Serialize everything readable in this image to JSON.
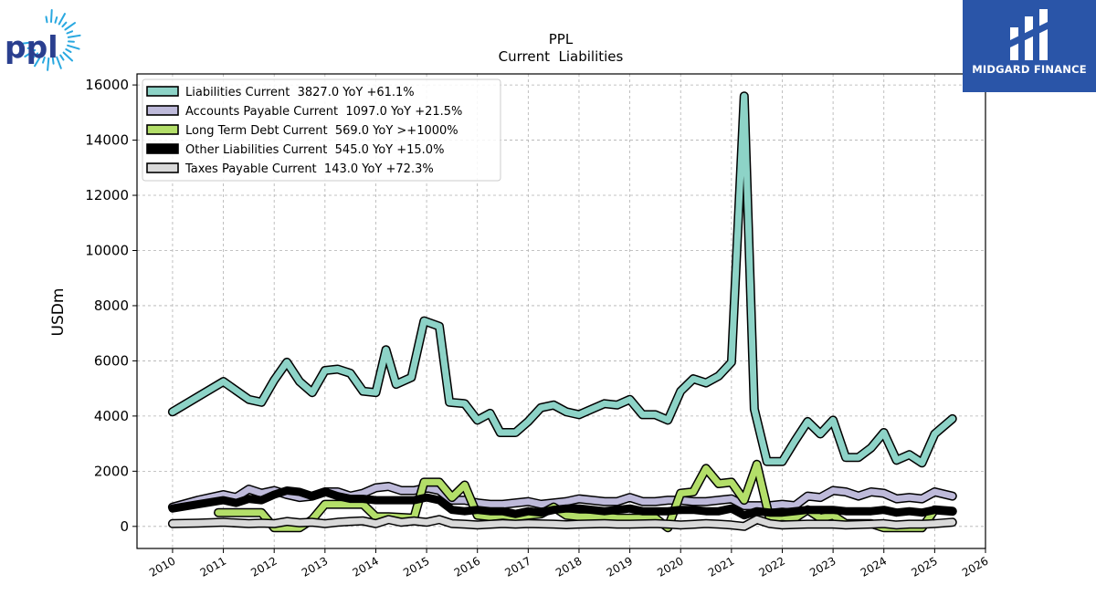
{
  "branding": {
    "company_logo_text": "ppl",
    "publisher": "MIDGARD FINANCE",
    "accent_color": "#2a55a8"
  },
  "chart_data": {
    "type": "line",
    "title": "PPL",
    "subtitle": "Current  Liabilities",
    "ylabel": "USDm",
    "xlabel": "",
    "xlim": [
      2009.3,
      2026.0
    ],
    "ylim": [
      -800,
      16400
    ],
    "x_ticks": [
      2010,
      2011,
      2012,
      2013,
      2014,
      2015,
      2016,
      2017,
      2018,
      2019,
      2020,
      2021,
      2022,
      2023,
      2024,
      2025,
      2026
    ],
    "y_ticks": [
      0,
      2000,
      4000,
      6000,
      8000,
      10000,
      12000,
      14000,
      16000
    ],
    "grid": true,
    "legend_position": "top-left",
    "series": [
      {
        "name": "Liabilities Current  3827.0 YoY +61.1%",
        "color": "#8dd3c7",
        "points": [
          [
            2010.0,
            4150
          ],
          [
            2011.0,
            5250
          ],
          [
            2011.5,
            4600
          ],
          [
            2011.75,
            4500
          ],
          [
            2012.0,
            5300
          ],
          [
            2012.25,
            5950
          ],
          [
            2012.5,
            5250
          ],
          [
            2012.75,
            4850
          ],
          [
            2013.0,
            5650
          ],
          [
            2013.25,
            5700
          ],
          [
            2013.5,
            5550
          ],
          [
            2013.75,
            4900
          ],
          [
            2014.0,
            4850
          ],
          [
            2014.2,
            6400
          ],
          [
            2014.4,
            5150
          ],
          [
            2014.7,
            5400
          ],
          [
            2014.95,
            7450
          ],
          [
            2015.25,
            7250
          ],
          [
            2015.45,
            4500
          ],
          [
            2015.75,
            4450
          ],
          [
            2016.0,
            3850
          ],
          [
            2016.25,
            4100
          ],
          [
            2016.45,
            3400
          ],
          [
            2016.75,
            3400
          ],
          [
            2017.0,
            3800
          ],
          [
            2017.25,
            4300
          ],
          [
            2017.5,
            4400
          ],
          [
            2017.75,
            4150
          ],
          [
            2018.0,
            4050
          ],
          [
            2018.25,
            4250
          ],
          [
            2018.5,
            4450
          ],
          [
            2018.75,
            4400
          ],
          [
            2019.0,
            4600
          ],
          [
            2019.25,
            4050
          ],
          [
            2019.5,
            4050
          ],
          [
            2019.75,
            3850
          ],
          [
            2020.0,
            4900
          ],
          [
            2020.25,
            5350
          ],
          [
            2020.5,
            5200
          ],
          [
            2020.75,
            5450
          ],
          [
            2021.0,
            5950
          ],
          [
            2021.25,
            15600
          ],
          [
            2021.45,
            4250
          ],
          [
            2021.7,
            2350
          ],
          [
            2022.0,
            2350
          ],
          [
            2022.25,
            3100
          ],
          [
            2022.5,
            3800
          ],
          [
            2022.75,
            3350
          ],
          [
            2023.0,
            3850
          ],
          [
            2023.25,
            2500
          ],
          [
            2023.5,
            2500
          ],
          [
            2023.75,
            2850
          ],
          [
            2024.0,
            3400
          ],
          [
            2024.25,
            2400
          ],
          [
            2024.5,
            2600
          ],
          [
            2024.75,
            2300
          ],
          [
            2025.0,
            3350
          ],
          [
            2025.35,
            3900
          ]
        ]
      },
      {
        "name": "Accounts Payable Current  1097.0 YoY +21.5%",
        "color": "#bebada",
        "points": [
          [
            2010.0,
            700
          ],
          [
            2010.5,
            950
          ],
          [
            2011.0,
            1150
          ],
          [
            2011.25,
            1050
          ],
          [
            2011.5,
            1350
          ],
          [
            2011.75,
            1200
          ],
          [
            2012.0,
            1300
          ],
          [
            2012.25,
            1150
          ],
          [
            2012.5,
            1050
          ],
          [
            2012.75,
            1100
          ],
          [
            2013.0,
            1250
          ],
          [
            2013.25,
            1250
          ],
          [
            2013.5,
            1100
          ],
          [
            2013.75,
            1200
          ],
          [
            2014.0,
            1400
          ],
          [
            2014.25,
            1450
          ],
          [
            2014.5,
            1300
          ],
          [
            2014.75,
            1300
          ],
          [
            2015.0,
            1400
          ],
          [
            2015.25,
            1300
          ],
          [
            2015.5,
            950
          ],
          [
            2015.75,
            950
          ],
          [
            2016.0,
            850
          ],
          [
            2016.25,
            800
          ],
          [
            2016.5,
            800
          ],
          [
            2016.75,
            850
          ],
          [
            2017.0,
            900
          ],
          [
            2017.25,
            800
          ],
          [
            2017.5,
            850
          ],
          [
            2017.75,
            900
          ],
          [
            2018.0,
            1000
          ],
          [
            2018.25,
            950
          ],
          [
            2018.5,
            900
          ],
          [
            2018.75,
            900
          ],
          [
            2019.0,
            1050
          ],
          [
            2019.25,
            900
          ],
          [
            2019.5,
            900
          ],
          [
            2019.75,
            950
          ],
          [
            2020.0,
            950
          ],
          [
            2020.25,
            900
          ],
          [
            2020.5,
            900
          ],
          [
            2020.75,
            950
          ],
          [
            2021.0,
            1000
          ],
          [
            2021.25,
            750
          ],
          [
            2021.5,
            750
          ],
          [
            2021.75,
            750
          ],
          [
            2022.0,
            800
          ],
          [
            2022.25,
            750
          ],
          [
            2022.5,
            1100
          ],
          [
            2022.75,
            1050
          ],
          [
            2023.0,
            1300
          ],
          [
            2023.25,
            1250
          ],
          [
            2023.5,
            1100
          ],
          [
            2023.75,
            1250
          ],
          [
            2024.0,
            1200
          ],
          [
            2024.25,
            1000
          ],
          [
            2024.5,
            1050
          ],
          [
            2024.75,
            1000
          ],
          [
            2025.0,
            1250
          ],
          [
            2025.35,
            1100
          ]
        ]
      },
      {
        "name": "Long Term Debt Current  569.0 YoY >+1000%",
        "color": "#b3de69",
        "points": [
          [
            2010.9,
            500
          ],
          [
            2011.75,
            500
          ],
          [
            2012.0,
            -50
          ],
          [
            2012.5,
            -50
          ],
          [
            2012.75,
            250
          ],
          [
            2013.0,
            800
          ],
          [
            2013.25,
            800
          ],
          [
            2013.75,
            800
          ],
          [
            2014.0,
            350
          ],
          [
            2014.25,
            350
          ],
          [
            2014.75,
            300
          ],
          [
            2014.95,
            1600
          ],
          [
            2015.25,
            1600
          ],
          [
            2015.5,
            1050
          ],
          [
            2015.75,
            1500
          ],
          [
            2016.0,
            400
          ],
          [
            2016.25,
            350
          ],
          [
            2016.5,
            400
          ],
          [
            2016.75,
            350
          ],
          [
            2017.0,
            400
          ],
          [
            2017.25,
            450
          ],
          [
            2017.5,
            700
          ],
          [
            2017.75,
            400
          ],
          [
            2018.0,
            350
          ],
          [
            2018.5,
            350
          ],
          [
            2018.75,
            300
          ],
          [
            2019.0,
            300
          ],
          [
            2019.25,
            300
          ],
          [
            2019.5,
            300
          ],
          [
            2019.75,
            -50
          ],
          [
            2020.0,
            1200
          ],
          [
            2020.25,
            1250
          ],
          [
            2020.5,
            2100
          ],
          [
            2020.75,
            1550
          ],
          [
            2021.0,
            1600
          ],
          [
            2021.25,
            950
          ],
          [
            2021.5,
            2250
          ],
          [
            2021.75,
            300
          ],
          [
            2022.0,
            350
          ],
          [
            2022.25,
            300
          ],
          [
            2022.5,
            600
          ],
          [
            2022.75,
            300
          ],
          [
            2023.0,
            400
          ],
          [
            2023.25,
            100
          ],
          [
            2023.5,
            100
          ],
          [
            2023.75,
            100
          ],
          [
            2024.0,
            -50
          ],
          [
            2024.25,
            -50
          ],
          [
            2024.5,
            -50
          ],
          [
            2024.75,
            -50
          ],
          [
            2025.0,
            600
          ],
          [
            2025.35,
            550
          ]
        ]
      },
      {
        "name": "Other Liabilities Current  545.0 YoY +15.0%",
        "color": "#000000",
        "points": [
          [
            2010.0,
            650
          ],
          [
            2010.5,
            800
          ],
          [
            2011.0,
            950
          ],
          [
            2011.25,
            850
          ],
          [
            2011.5,
            1000
          ],
          [
            2011.75,
            950
          ],
          [
            2012.0,
            1150
          ],
          [
            2012.25,
            1300
          ],
          [
            2012.5,
            1250
          ],
          [
            2012.75,
            1100
          ],
          [
            2013.0,
            1250
          ],
          [
            2013.25,
            1100
          ],
          [
            2013.5,
            1000
          ],
          [
            2013.75,
            1000
          ],
          [
            2014.0,
            950
          ],
          [
            2014.25,
            950
          ],
          [
            2014.5,
            950
          ],
          [
            2014.75,
            950
          ],
          [
            2015.0,
            1050
          ],
          [
            2015.25,
            950
          ],
          [
            2015.5,
            600
          ],
          [
            2015.75,
            550
          ],
          [
            2016.0,
            600
          ],
          [
            2016.25,
            550
          ],
          [
            2016.5,
            550
          ],
          [
            2016.75,
            450
          ],
          [
            2017.0,
            550
          ],
          [
            2017.25,
            500
          ],
          [
            2017.5,
            600
          ],
          [
            2017.75,
            650
          ],
          [
            2018.0,
            650
          ],
          [
            2018.25,
            600
          ],
          [
            2018.5,
            550
          ],
          [
            2018.75,
            600
          ],
          [
            2019.0,
            650
          ],
          [
            2019.25,
            550
          ],
          [
            2019.5,
            550
          ],
          [
            2019.75,
            550
          ],
          [
            2020.0,
            600
          ],
          [
            2020.25,
            600
          ],
          [
            2020.5,
            550
          ],
          [
            2020.75,
            550
          ],
          [
            2021.0,
            650
          ],
          [
            2021.25,
            400
          ],
          [
            2021.5,
            550
          ],
          [
            2021.75,
            500
          ],
          [
            2022.0,
            500
          ],
          [
            2022.25,
            550
          ],
          [
            2022.5,
            600
          ],
          [
            2022.75,
            600
          ],
          [
            2023.0,
            600
          ],
          [
            2023.25,
            550
          ],
          [
            2023.5,
            550
          ],
          [
            2023.75,
            550
          ],
          [
            2024.0,
            600
          ],
          [
            2024.25,
            500
          ],
          [
            2024.5,
            550
          ],
          [
            2024.75,
            500
          ],
          [
            2025.0,
            600
          ],
          [
            2025.35,
            550
          ]
        ]
      },
      {
        "name": "Taxes Payable Current  143.0 YoY +72.3%",
        "color": "#d9d9d9",
        "points": [
          [
            2010.0,
            100
          ],
          [
            2010.5,
            120
          ],
          [
            2011.0,
            150
          ],
          [
            2011.5,
            100
          ],
          [
            2011.75,
            120
          ],
          [
            2012.0,
            100
          ],
          [
            2012.25,
            180
          ],
          [
            2012.5,
            130
          ],
          [
            2012.75,
            150
          ],
          [
            2013.0,
            100
          ],
          [
            2013.25,
            150
          ],
          [
            2013.5,
            180
          ],
          [
            2013.75,
            200
          ],
          [
            2014.0,
            100
          ],
          [
            2014.25,
            250
          ],
          [
            2014.5,
            150
          ],
          [
            2014.75,
            200
          ],
          [
            2015.0,
            150
          ],
          [
            2015.25,
            250
          ],
          [
            2015.5,
            100
          ],
          [
            2015.75,
            80
          ],
          [
            2016.0,
            50
          ],
          [
            2016.5,
            100
          ],
          [
            2016.75,
            80
          ],
          [
            2017.0,
            100
          ],
          [
            2017.5,
            80
          ],
          [
            2017.75,
            60
          ],
          [
            2018.0,
            80
          ],
          [
            2018.5,
            100
          ],
          [
            2018.75,
            80
          ],
          [
            2019.0,
            80
          ],
          [
            2019.5,
            100
          ],
          [
            2019.75,
            80
          ],
          [
            2020.0,
            50
          ],
          [
            2020.5,
            100
          ],
          [
            2020.75,
            80
          ],
          [
            2021.0,
            50
          ],
          [
            2021.25,
            0
          ],
          [
            2021.5,
            250
          ],
          [
            2021.75,
            100
          ],
          [
            2022.0,
            50
          ],
          [
            2022.5,
            80
          ],
          [
            2022.75,
            80
          ],
          [
            2023.0,
            80
          ],
          [
            2023.25,
            50
          ],
          [
            2023.75,
            80
          ],
          [
            2024.0,
            100
          ],
          [
            2024.25,
            50
          ],
          [
            2024.5,
            80
          ],
          [
            2024.75,
            80
          ],
          [
            2025.0,
            100
          ],
          [
            2025.35,
            150
          ]
        ]
      }
    ]
  }
}
